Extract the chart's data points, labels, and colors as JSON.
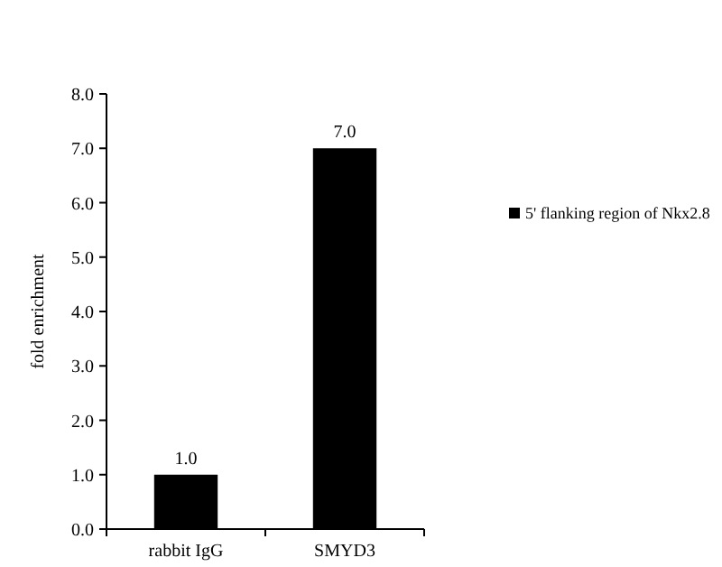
{
  "chart_data": {
    "type": "bar",
    "ylabel": "fold enrichment",
    "categories": [
      "rabbit IgG",
      "SMYD3"
    ],
    "series": [
      {
        "name": "5' flanking region of Nkx2.8",
        "color": "#000000",
        "values": [
          1.0,
          7.0
        ],
        "value_labels": [
          "1.0",
          "7.0"
        ]
      }
    ],
    "ylim": [
      0,
      8
    ],
    "yticks": [
      {
        "value": 0,
        "label": "0.0"
      },
      {
        "value": 1,
        "label": "1.0"
      },
      {
        "value": 2,
        "label": "2.0"
      },
      {
        "value": 3,
        "label": "3.0"
      },
      {
        "value": 4,
        "label": "4.0"
      },
      {
        "value": 5,
        "label": "5.0"
      },
      {
        "value": 6,
        "label": "6.0"
      },
      {
        "value": 7,
        "label": "7.0"
      },
      {
        "value": 8,
        "label": "8.0"
      }
    ],
    "grid": false,
    "legend": "right"
  }
}
